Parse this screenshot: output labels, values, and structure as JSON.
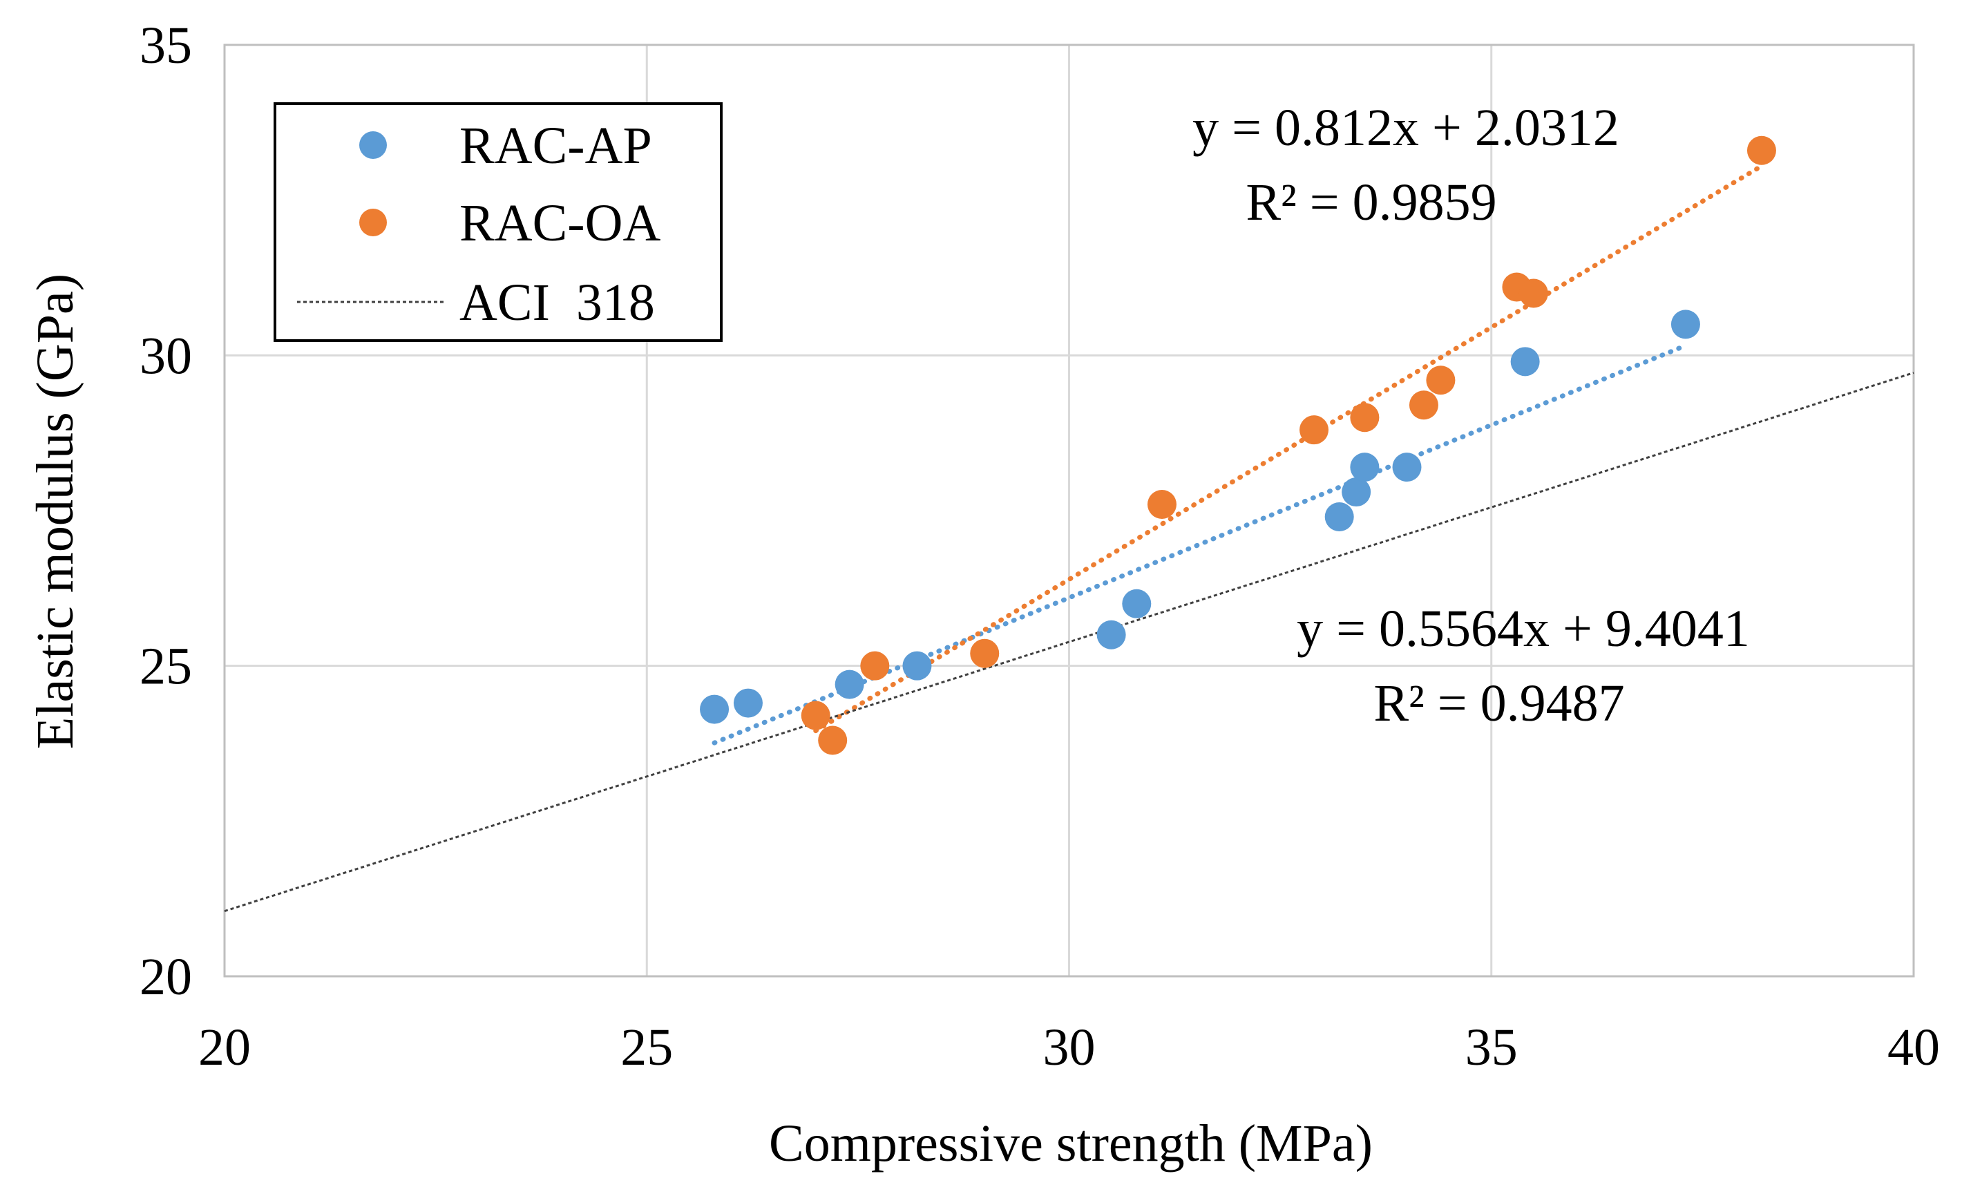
{
  "chart_data": {
    "type": "scatter",
    "title": "",
    "xlabel": "Compressive strength (MPa)",
    "ylabel": "Elastic modulus (GPa)",
    "xlim": [
      20,
      40
    ],
    "ylim": [
      20,
      35
    ],
    "xticks": [
      "20",
      "25",
      "30",
      "35",
      "40"
    ],
    "yticks": [
      "20",
      "25",
      "30",
      "35"
    ],
    "grid": true,
    "legend_position": "top-left",
    "series": [
      {
        "name": "RAC-AP",
        "color": "#5B9BD5",
        "points": [
          [
            25.8,
            24.3
          ],
          [
            26.2,
            24.4
          ],
          [
            27.4,
            24.7
          ],
          [
            28.2,
            25.0
          ],
          [
            30.5,
            25.5
          ],
          [
            30.8,
            26.0
          ],
          [
            33.2,
            27.4
          ],
          [
            33.4,
            27.8
          ],
          [
            33.5,
            28.2
          ],
          [
            34.0,
            28.2
          ],
          [
            35.4,
            29.9
          ],
          [
            37.3,
            30.5
          ]
        ],
        "trendline": {
          "slope": 0.5564,
          "intercept": 9.4041,
          "x_range": [
            25.8,
            37.3
          ]
        },
        "equation": "y = 0.5564x + 9.4041",
        "r_squared": "R² = 0.9487"
      },
      {
        "name": "RAC-OA",
        "color": "#ED7D31",
        "points": [
          [
            27.0,
            24.2
          ],
          [
            27.2,
            23.8
          ],
          [
            27.7,
            25.0
          ],
          [
            29.0,
            25.2
          ],
          [
            31.1,
            27.6
          ],
          [
            32.9,
            28.8
          ],
          [
            33.5,
            29.0
          ],
          [
            34.2,
            29.2
          ],
          [
            34.4,
            29.6
          ],
          [
            35.3,
            31.1
          ],
          [
            35.5,
            31.0
          ],
          [
            38.2,
            33.3
          ]
        ],
        "trendline": {
          "slope": 0.812,
          "intercept": 2.0312,
          "x_range": [
            27.0,
            38.2
          ]
        },
        "equation": "y = 0.812x + 2.0312",
        "r_squared": "R² = 0.9859"
      },
      {
        "name": "ACI  318",
        "color": "#404040",
        "line": {
          "x": [
            20,
            40
          ],
          "y": [
            21.05,
            29.72
          ]
        }
      }
    ]
  }
}
